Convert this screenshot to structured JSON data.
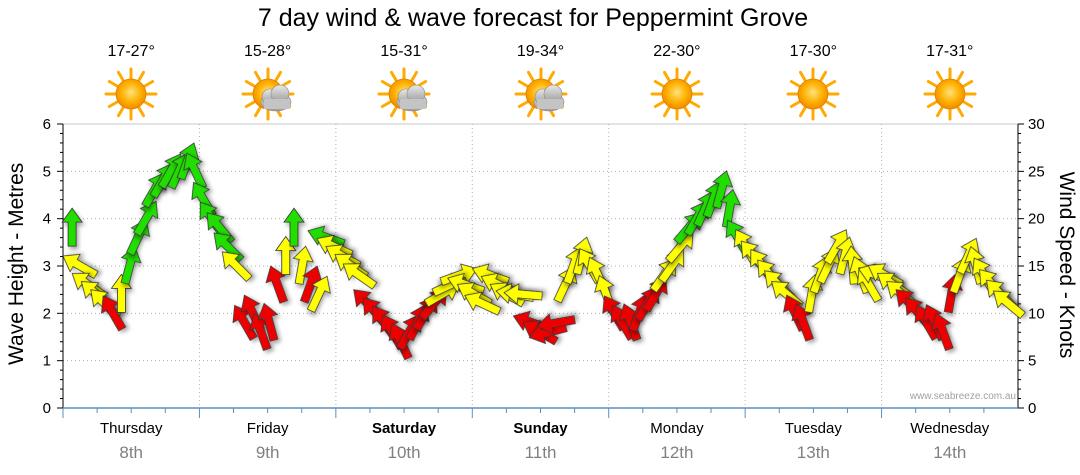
{
  "title": "7 day wind & wave forecast for Peppermint Grove",
  "watermark": "www.seabreeze.com.au",
  "days": [
    {
      "name": "Thursday",
      "date": "8th",
      "temp": "17-27°",
      "icon": "sun-icon",
      "bold": false
    },
    {
      "name": "Friday",
      "date": "9th",
      "temp": "15-28°",
      "icon": "sun-cloud-icon",
      "bold": false
    },
    {
      "name": "Saturday",
      "date": "10th",
      "temp": "15-31°",
      "icon": "sun-cloud-icon",
      "bold": true
    },
    {
      "name": "Sunday",
      "date": "11th",
      "temp": "19-34°",
      "icon": "sun-cloud-icon",
      "bold": true
    },
    {
      "name": "Monday",
      "date": "12th",
      "temp": "22-30°",
      "icon": "sun-icon",
      "bold": false
    },
    {
      "name": "Tuesday",
      "date": "13th",
      "temp": "17-30°",
      "icon": "sun-icon",
      "bold": false
    },
    {
      "name": "Wednesday",
      "date": "14th",
      "temp": "17-31°",
      "icon": "sun-icon",
      "bold": false
    }
  ],
  "colors": {
    "green": "#22dd00",
    "yellow": "#ffff00",
    "red": "#ee0000",
    "sun": "#ffaa00",
    "cloud": "#b8b8b8"
  },
  "chart_data": {
    "type": "scatter",
    "title": "7 day wind & wave forecast for Peppermint Grove",
    "ylabel_left": "Wave Height - Metres",
    "ylabel_right": "Wind Speed - Knots",
    "ylim_left": [
      0,
      6
    ],
    "ylim_right": [
      0,
      30
    ],
    "yticks_left": [
      "0",
      "1",
      "2",
      "3",
      "4",
      "5",
      "6"
    ],
    "yticks_right": [
      "0",
      "5",
      "10",
      "15",
      "20",
      "25",
      "30"
    ],
    "x_categories": [
      "Thursday 8th",
      "Friday 9th",
      "Saturday 10th",
      "Sunday 11th",
      "Monday 12th",
      "Tuesday 13th",
      "Wednesday 14th"
    ],
    "grid": true,
    "series": [
      {
        "marker": "wind arrow (direction + speed)",
        "wind_knots": [
          19,
          15,
          13,
          12,
          11,
          10,
          12,
          15,
          18,
          20,
          23,
          24,
          25,
          25,
          26,
          25,
          22,
          20,
          19,
          17,
          15,
          9,
          10,
          8,
          9,
          13,
          16,
          19,
          15,
          13,
          12,
          18,
          17,
          16,
          15,
          14,
          11,
          10,
          9,
          8,
          7,
          8,
          9,
          10,
          11,
          12,
          13,
          14,
          13,
          12,
          11,
          14,
          13,
          12,
          12,
          12,
          9,
          8,
          8,
          9,
          13,
          15,
          16,
          15,
          14,
          12,
          10,
          9,
          9,
          10,
          11,
          12,
          14,
          15,
          17,
          19,
          20,
          21,
          22,
          23,
          21,
          18,
          17,
          16,
          15,
          14,
          13,
          12,
          10,
          9,
          12,
          14,
          15,
          17,
          16,
          15,
          14,
          13,
          14,
          14,
          13,
          12,
          11,
          10,
          9,
          9,
          8,
          12,
          14,
          16,
          15,
          14,
          13,
          12,
          11
        ],
        "wind_color": [
          "green",
          "yellow",
          "yellow",
          "yellow",
          "yellow",
          "red",
          "yellow",
          "green",
          "green",
          "green",
          "green",
          "green",
          "green",
          "green",
          "green",
          "green",
          "green",
          "green",
          "green",
          "green",
          "yellow",
          "red",
          "red",
          "red",
          "red",
          "red",
          "yellow",
          "green",
          "yellow",
          "red",
          "yellow",
          "green",
          "yellow",
          "yellow",
          "yellow",
          "yellow",
          "red",
          "red",
          "red",
          "red",
          "red",
          "red",
          "red",
          "red",
          "red",
          "yellow",
          "yellow",
          "yellow",
          "yellow",
          "yellow",
          "yellow",
          "yellow",
          "yellow",
          "yellow",
          "yellow",
          "yellow",
          "red",
          "red",
          "red",
          "red",
          "yellow",
          "yellow",
          "yellow",
          "yellow",
          "yellow",
          "yellow",
          "red",
          "red",
          "red",
          "red",
          "red",
          "red",
          "yellow",
          "yellow",
          "yellow",
          "green",
          "green",
          "green",
          "green",
          "green",
          "green",
          "green",
          "yellow",
          "yellow",
          "yellow",
          "yellow",
          "yellow",
          "yellow",
          "red",
          "red",
          "yellow",
          "yellow",
          "yellow",
          "yellow",
          "yellow",
          "yellow",
          "yellow",
          "yellow",
          "yellow",
          "yellow",
          "yellow",
          "yellow",
          "red",
          "red",
          "red",
          "red",
          "red",
          "red",
          "yellow",
          "yellow",
          "yellow",
          "yellow",
          "yellow",
          "yellow",
          "yellow"
        ],
        "wind_dir_deg": [
          0,
          300,
          305,
          310,
          315,
          330,
          0,
          15,
          25,
          30,
          30,
          30,
          30,
          25,
          20,
          335,
          330,
          325,
          320,
          315,
          315,
          330,
          335,
          340,
          345,
          340,
          0,
          0,
          10,
          20,
          25,
          290,
          295,
          300,
          305,
          305,
          315,
          320,
          325,
          330,
          335,
          30,
          25,
          30,
          40,
          60,
          65,
          70,
          290,
          300,
          295,
          290,
          295,
          300,
          280,
          275,
          290,
          300,
          255,
          260,
          25,
          20,
          15,
          330,
          335,
          340,
          330,
          330,
          340,
          20,
          30,
          30,
          35,
          35,
          40,
          40,
          30,
          25,
          20,
          15,
          10,
          330,
          330,
          320,
          325,
          320,
          315,
          310,
          335,
          340,
          10,
          20,
          25,
          30,
          15,
          355,
          340,
          330,
          290,
          300,
          305,
          310,
          315,
          320,
          330,
          335,
          340,
          10,
          20,
          25,
          345,
          330,
          320,
          315,
          310
        ]
      }
    ]
  }
}
